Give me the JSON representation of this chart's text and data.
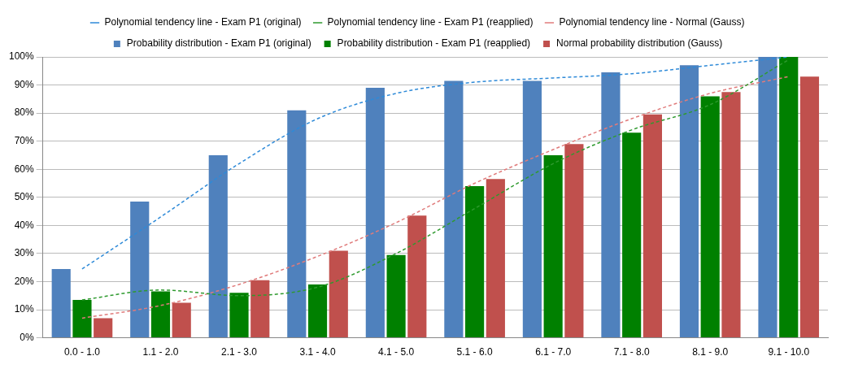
{
  "chart_data": {
    "type": "bar",
    "categories": [
      "0.0 - 1.0",
      "1.1 - 2.0",
      "2.1 - 3.0",
      "3.1 - 4.0",
      "4.1 - 5.0",
      "5.1 - 6.0",
      "6.1 - 7.0",
      "7.1 - 8.0",
      "8.1 - 9.0",
      "9.1 - 10.0"
    ],
    "series": [
      {
        "name": "Probability distribution - Exam P1 (original)",
        "color": "#4f81bd",
        "values": [
          24.5,
          48.5,
          65,
          81,
          89,
          91.5,
          91.5,
          94.5,
          97,
          100
        ]
      },
      {
        "name": "Probability distribution - Exam P1 (reapplied)",
        "color": "#008000",
        "values": [
          13.5,
          16.5,
          16,
          19,
          29.5,
          54,
          65,
          73,
          86,
          100
        ]
      },
      {
        "name": "Normal probability distribution (Gauss)",
        "color": "#c0504d",
        "values": [
          7,
          12.5,
          20.5,
          31,
          43.5,
          56.5,
          69,
          79.5,
          87.5,
          93
        ]
      },
      {
        "name": "Polynomial tendency line - Exam P1 (original)",
        "type": "line",
        "line_style": "dashed",
        "marker": "none",
        "color": "#2e8ad8",
        "values": [
          24.5,
          43,
          62,
          78,
          87,
          91,
          92.5,
          94,
          97,
          100
        ]
      },
      {
        "name": "Polynomial tendency line - Exam P1 (reapplied)",
        "type": "line",
        "line_style": "dashed",
        "marker": "none",
        "color": "#2e9a2e",
        "values": [
          13.5,
          17,
          15,
          18,
          30,
          46,
          62,
          74,
          83,
          99
        ]
      },
      {
        "name": "Polynomial tendency line - Normal (Gauss)",
        "type": "line",
        "line_style": "dashed",
        "marker": "none",
        "color": "#e07b7b",
        "values": [
          7,
          11.5,
          19,
          29,
          41,
          55,
          67,
          78,
          87,
          93
        ]
      }
    ],
    "ylim": [
      0,
      100
    ],
    "yticks": [
      {
        "value": 0,
        "label": "0%"
      },
      {
        "value": 10,
        "label": "10%"
      },
      {
        "value": 20,
        "label": "20%"
      },
      {
        "value": 30,
        "label": "30%"
      },
      {
        "value": 40,
        "label": "40%"
      },
      {
        "value": 50,
        "label": "50%"
      },
      {
        "value": 60,
        "label": "60%"
      },
      {
        "value": 70,
        "label": "70%"
      },
      {
        "value": 80,
        "label": "80%"
      },
      {
        "value": 90,
        "label": "90%"
      },
      {
        "value": 100,
        "label": "100%"
      }
    ],
    "grid": "y",
    "legend": "top"
  }
}
